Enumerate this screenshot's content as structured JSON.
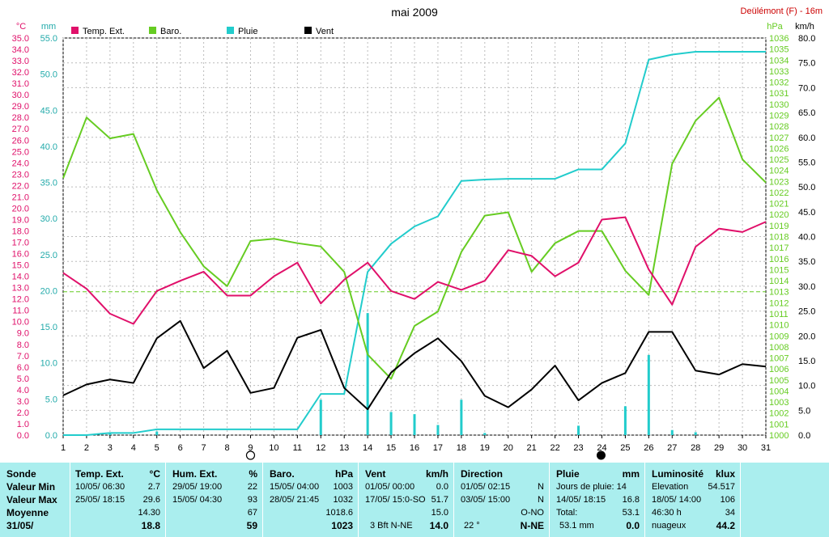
{
  "title": "mai 2009",
  "station": "Deülémont (F) - 16m",
  "units": {
    "temp": "°C",
    "rain": "mm",
    "baro": "hPa",
    "wind": "km/h"
  },
  "legend": [
    {
      "label": "Temp. Ext.",
      "color": "#e0106a"
    },
    {
      "label": "Baro.",
      "color": "#66cc22"
    },
    {
      "label": "Pluie",
      "color": "#22cccc"
    },
    {
      "label": "Vent",
      "color": "#000000"
    }
  ],
  "axis_labels": {
    "temp": [
      "0.0",
      "1.0",
      "2.0",
      "3.0",
      "4.0",
      "5.0",
      "6.0",
      "7.0",
      "8.0",
      "9.0",
      "10.0",
      "11.0",
      "12.0",
      "13.0",
      "14.0",
      "15.0",
      "16.0",
      "17.0",
      "18.0",
      "19.0",
      "20.0",
      "21.0",
      "22.0",
      "23.0",
      "24.0",
      "25.0",
      "26.0",
      "27.0",
      "28.0",
      "29.0",
      "30.0",
      "31.0",
      "32.0",
      "33.0",
      "34.0",
      "35.0"
    ],
    "rain": [
      "0.0",
      "5.0",
      "10.0",
      "15.0",
      "20.0",
      "25.0",
      "30.0",
      "35.0",
      "40.0",
      "45.0",
      "50.0",
      "55.0"
    ],
    "baro": [
      "1000",
      "1001",
      "1002",
      "1003",
      "1004",
      "1005",
      "1006",
      "1007",
      "1008",
      "1009",
      "1010",
      "1011",
      "1012",
      "1013",
      "1014",
      "1015",
      "1016",
      "1017",
      "1018",
      "1019",
      "1020",
      "1021",
      "1022",
      "1023",
      "1024",
      "1025",
      "1026",
      "1027",
      "1028",
      "1029",
      "1030",
      "1031",
      "1032",
      "1033",
      "1034",
      "1035",
      "1036"
    ],
    "wind": [
      "0.0",
      "5.0",
      "10.0",
      "15.0",
      "20.0",
      "25.0",
      "30.0",
      "35.0",
      "40.0",
      "45.0",
      "50.0",
      "55.0",
      "60.0",
      "65.0",
      "70.0",
      "75.0",
      "80.0"
    ],
    "days": [
      "1",
      "2",
      "3",
      "4",
      "5",
      "6",
      "7",
      "8",
      "9",
      "10",
      "11",
      "12",
      "13",
      "14",
      "15",
      "16",
      "17",
      "18",
      "19",
      "20",
      "21",
      "22",
      "23",
      "24",
      "25",
      "26",
      "27",
      "28",
      "29",
      "30",
      "31"
    ]
  },
  "chart_data": {
    "type": "line",
    "title": "mai 2009",
    "x": [
      1,
      2,
      3,
      4,
      5,
      6,
      7,
      8,
      9,
      10,
      11,
      12,
      13,
      14,
      15,
      16,
      17,
      18,
      19,
      20,
      21,
      22,
      23,
      24,
      25,
      26,
      27,
      28,
      29,
      30,
      31
    ],
    "xlim": [
      1,
      31
    ],
    "series": [
      {
        "name": "Temp. Ext.",
        "axis": "temp",
        "ylim": [
          0,
          35
        ],
        "values": [
          14.3,
          12.9,
          10.7,
          9.8,
          12.7,
          13.6,
          14.4,
          12.3,
          12.3,
          14.0,
          15.2,
          11.6,
          13.7,
          15.2,
          12.7,
          12.0,
          13.5,
          12.8,
          13.6,
          16.3,
          15.8,
          14.0,
          15.2,
          19.0,
          19.2,
          14.6,
          11.5,
          16.6,
          18.2,
          17.9,
          18.8
        ]
      },
      {
        "name": "Baro.",
        "axis": "baro",
        "ylim": [
          1000,
          1036
        ],
        "values": [
          1023.3,
          1028.8,
          1026.9,
          1027.3,
          1022.2,
          1018.4,
          1015.3,
          1013.5,
          1017.6,
          1017.8,
          1017.4,
          1017.1,
          1014.8,
          1007.3,
          1005.1,
          1009.9,
          1011.2,
          1016.6,
          1019.9,
          1020.2,
          1014.8,
          1017.4,
          1018.5,
          1018.5,
          1014.9,
          1012.7,
          1024.6,
          1028.5,
          1030.6,
          1025.0,
          1022.9
        ]
      },
      {
        "name": "Pluie",
        "axis": "rain",
        "ylim": [
          0,
          55
        ],
        "cumulative": true,
        "values": [
          0.0,
          0.0,
          0.3,
          0.3,
          0.8,
          0.8,
          0.8,
          0.8,
          0.8,
          0.8,
          0.8,
          5.7,
          5.7,
          22.6,
          26.5,
          28.9,
          30.3,
          35.2,
          35.4,
          35.5,
          35.5,
          35.5,
          36.8,
          36.8,
          40.4,
          52.0,
          52.7,
          53.1,
          53.1,
          53.1,
          53.1
        ]
      },
      {
        "name": "Vent",
        "axis": "wind",
        "ylim": [
          0,
          80
        ],
        "values": [
          8.0,
          10.2,
          11.2,
          10.5,
          19.5,
          23.0,
          13.5,
          17.0,
          8.5,
          9.5,
          19.6,
          21.2,
          9.5,
          5.2,
          12.6,
          16.5,
          19.5,
          14.9,
          7.9,
          5.6,
          9.2,
          14.0,
          7.0,
          10.5,
          12.5,
          20.8,
          20.8,
          13.0,
          12.2,
          14.3,
          13.8
        ]
      },
      {
        "name": "Pluie",
        "type": "bar",
        "axis": "rain",
        "ylim": [
          0,
          55
        ],
        "values": [
          0,
          0,
          0.3,
          0,
          0.5,
          0,
          0,
          0,
          0,
          0,
          0,
          4.9,
          0,
          16.9,
          3.2,
          2.9,
          1.4,
          4.9,
          0.3,
          0,
          0,
          0,
          1.3,
          0,
          4.0,
          11.1,
          0.7,
          0.4,
          0,
          0,
          0
        ]
      }
    ],
    "reference_line": {
      "axis": "baro",
      "value": 1013
    },
    "moon_phases": [
      {
        "day": 9,
        "phase": "full"
      },
      {
        "day": 24,
        "phase": "new"
      }
    ],
    "grid": true,
    "legend_position": "top-left"
  },
  "summary": {
    "labels": [
      "Sonde",
      "Valeur Min",
      "Valeur Max",
      "Moyenne",
      "31/05/"
    ],
    "temp": {
      "title": "Temp. Ext.",
      "unit": "°C",
      "min_time": "10/05/  06:30",
      "min": "2.7",
      "max_time": "25/05/  18:15",
      "max": "29.6",
      "avg": "14.30",
      "current": "18.8"
    },
    "hum": {
      "title": "Hum. Ext.",
      "unit": "%",
      "min_time": "29/05/  19:00",
      "min": "22",
      "max_time": "15/05/  04:30",
      "max": "93",
      "avg": "67",
      "current": "59"
    },
    "baro": {
      "title": "Baro.",
      "unit": "hPa",
      "min_time": "15/05/  04:00",
      "min": "1003",
      "max_time": "28/05/  21:45",
      "max": "1032",
      "avg": "1018.6",
      "current": "1023"
    },
    "wind": {
      "title": "Vent",
      "unit": "km/h",
      "min_time": "01/05/  00:00",
      "min": "0.0",
      "max_time": "17/05/  15:0-SO",
      "max": "51.7",
      "avg": "15.0",
      "current_label": "3 Bft N-NE",
      "current": "14.0"
    },
    "dir": {
      "title": "Direction",
      "r1_time": "01/05/  02:15",
      "r1": "N",
      "r2_time": "03/05/  15:00",
      "r2": "N",
      "r3": "O-NO",
      "current_label": "22 °",
      "current": "N-NE"
    },
    "rain": {
      "title": "Pluie",
      "unit": "mm",
      "r1": "Jours de pluie: 14",
      "r2_time": "14/05/  18:15",
      "r2": "16.8",
      "r3_label": "Total:",
      "r3": "53.1",
      "current_label": "53.1 mm",
      "current": "0.0"
    },
    "lum": {
      "title": "Luminosité",
      "unit": "klux",
      "r1_label": "Elevation",
      "r1": "54.517",
      "r2_time": "18/05/  14:00",
      "r2": "106",
      "r3_label": "46:30 h",
      "r3": "34",
      "current_label": "nuageux",
      "current": "44.2"
    }
  }
}
